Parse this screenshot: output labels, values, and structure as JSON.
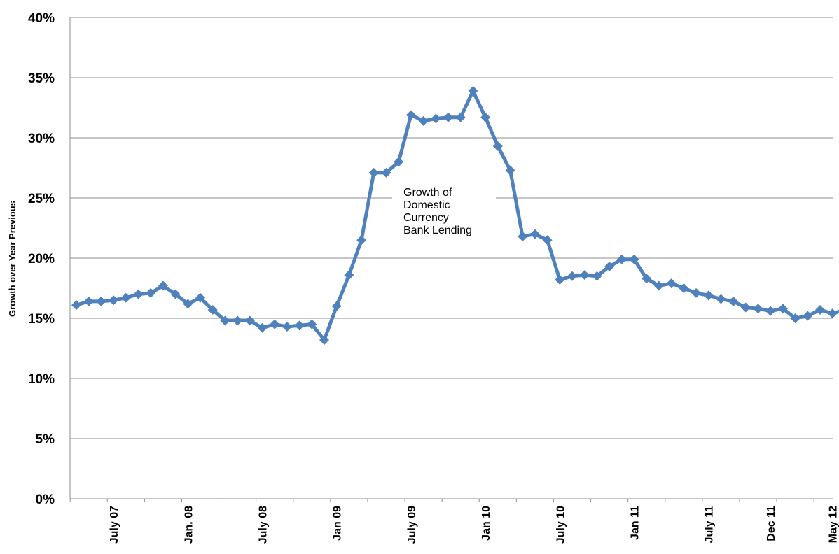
{
  "chart_data": {
    "type": "line",
    "title": "",
    "xlabel": "",
    "ylabel": "Growth over Year Previous",
    "ylim": [
      0,
      40
    ],
    "yticks": [
      "0%",
      "5%",
      "10%",
      "15%",
      "20%",
      "25%",
      "30%",
      "35%",
      "40%"
    ],
    "grid": true,
    "legend": "none",
    "x_tick_labels": [
      {
        "label": "July 07",
        "index": 3
      },
      {
        "label": "Jan. 08",
        "index": 9
      },
      {
        "label": "July 08",
        "index": 15
      },
      {
        "label": "Jan 09",
        "index": 21
      },
      {
        "label": "July 09",
        "index": 27
      },
      {
        "label": "Jan 10",
        "index": 33
      },
      {
        "label": "July 10",
        "index": 39
      },
      {
        "label": "Jan 11",
        "index": 45
      },
      {
        "label": "July 11",
        "index": 51
      },
      {
        "label": "Dec 11",
        "index": 56
      },
      {
        "label": "May 12",
        "index": 61
      }
    ],
    "series": [
      {
        "color": "#4F81BD",
        "values": [
          16.1,
          16.4,
          16.4,
          16.5,
          16.7,
          17.0,
          17.1,
          17.7,
          17.0,
          16.2,
          16.7,
          15.7,
          14.8,
          14.8,
          14.8,
          14.2,
          14.5,
          14.3,
          14.4,
          14.5,
          13.2,
          16.0,
          18.6,
          21.5,
          27.1,
          27.1,
          28.0,
          31.9,
          31.4,
          31.6,
          31.7,
          31.7,
          33.9,
          31.7,
          29.3,
          27.3,
          21.8,
          22.0,
          21.5,
          18.2,
          18.5,
          18.6,
          18.5,
          19.3,
          19.9,
          19.9,
          18.3,
          17.7,
          17.9,
          17.5,
          17.1,
          16.9,
          16.6,
          16.4,
          15.9,
          15.8,
          15.6,
          15.8,
          15.0,
          15.2,
          15.7,
          15.4,
          15.7
        ]
      }
    ],
    "annotations": [
      {
        "text_lines": [
          "Growth of",
          "Domestic",
          "Currency",
          "Bank Lending"
        ]
      }
    ]
  }
}
